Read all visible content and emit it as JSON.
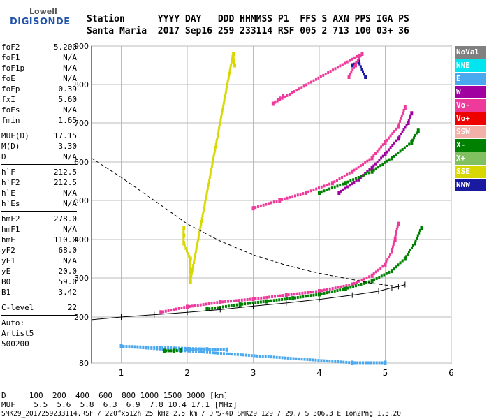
{
  "logo": {
    "top": "Lowell",
    "bottom": "DIGISONDE"
  },
  "header": {
    "line1": "Station      YYYY DAY   DDD HHMMSS P1  FFS S AXN PPS IGA PS",
    "line2": "Santa Maria  2017 Sep16 259 233114 RSF 005 2 713 100 03+ 36"
  },
  "params": {
    "group1": [
      {
        "label": "foF2",
        "value": "5.200"
      },
      {
        "label": "foF1",
        "value": "N/A"
      },
      {
        "label": "foF1p",
        "value": "N/A"
      },
      {
        "label": "foE",
        "value": "N/A"
      },
      {
        "label": "foEp",
        "value": "0.39"
      },
      {
        "label": "fxI",
        "value": "5.60"
      },
      {
        "label": "foEs",
        "value": "N/A"
      },
      {
        "label": "fmin",
        "value": "1.65"
      }
    ],
    "group2": [
      {
        "label": "MUF(D)",
        "value": "17.15"
      },
      {
        "label": "M(D)",
        "value": "3.30"
      },
      {
        "label": "D",
        "value": "N/A"
      }
    ],
    "group3": [
      {
        "label": "h`F",
        "value": "212.5"
      },
      {
        "label": "h`F2",
        "value": "212.5"
      },
      {
        "label": "h`E",
        "value": "N/A"
      },
      {
        "label": "h`Es",
        "value": "N/A"
      }
    ],
    "group4": [
      {
        "label": "hmF2",
        "value": "278.0"
      },
      {
        "label": "hmF1",
        "value": "N/A"
      },
      {
        "label": "hmE",
        "value": "110.0"
      },
      {
        "label": "yF2",
        "value": "68.0"
      },
      {
        "label": "yF1",
        "value": "N/A"
      },
      {
        "label": "yE",
        "value": "20.0"
      },
      {
        "label": "B0",
        "value": "59.0"
      },
      {
        "label": "B1",
        "value": "3.42"
      }
    ],
    "group5": [
      {
        "label": "C-level",
        "value": "22"
      }
    ],
    "auto_label": "Auto:",
    "artist": "Artist5",
    "version": "500200"
  },
  "legend": [
    {
      "label": "NoVal",
      "color": "#808080"
    },
    {
      "label": "NNE",
      "color": "#00e5ee"
    },
    {
      "label": "E",
      "color": "#4aa8ee"
    },
    {
      "label": "W",
      "color": "#a000a0"
    },
    {
      "label": "Vo-",
      "color": "#ee3a9a"
    },
    {
      "label": "Vo+",
      "color": "#ee0000"
    },
    {
      "label": "SSW",
      "color": "#f3b0a8"
    },
    {
      "label": "X-",
      "color": "#008000"
    },
    {
      "label": "X+",
      "color": "#80c060"
    },
    {
      "label": "SSE",
      "color": "#d8d800"
    },
    {
      "label": "NNW",
      "color": "#1a1aa0"
    }
  ],
  "muf_table": {
    "distance_row": "D     100  200  400  600  800 1000 1500 3000 [km]",
    "muf_row": "MUF    5.5  5.6  5.8  6.3  6.9  7.8 10.4 17.1 [MHz]"
  },
  "footer": "SMK29_2017259233114.RSF / 220fx512h 25 kHz 2.5 km / DPS-4D SMK29 129 / 29.7 S 306.3 E Ion2Png 1.3.20",
  "chart_data": {
    "type": "scatter",
    "x_ticks": [
      "1",
      "2",
      "3",
      "4",
      "5",
      "6"
    ],
    "y_ticks": [
      "80",
      "200",
      "300",
      "400",
      "500",
      "600",
      "700",
      "800",
      "900"
    ],
    "xlim": [
      0.55,
      6.0
    ],
    "y_range": [
      80,
      900
    ],
    "grid": true,
    "series": [
      {
        "name": "Vo-",
        "color": "#ee3a9a",
        "points": [
          [
            1.6,
            212
          ],
          [
            2.0,
            226
          ],
          [
            2.5,
            238
          ],
          [
            3.0,
            246
          ],
          [
            3.5,
            256
          ],
          [
            4.0,
            266
          ],
          [
            4.5,
            283
          ],
          [
            4.8,
            306
          ],
          [
            5.0,
            335
          ],
          [
            5.1,
            368
          ],
          [
            5.15,
            400
          ],
          [
            5.2,
            440
          ]
        ]
      },
      {
        "name": "X-",
        "color": "#008000",
        "points": [
          [
            2.3,
            220
          ],
          [
            2.8,
            232
          ],
          [
            3.2,
            240
          ],
          [
            3.6,
            248
          ],
          [
            4.0,
            258
          ],
          [
            4.4,
            272
          ],
          [
            4.8,
            292
          ],
          [
            5.1,
            318
          ],
          [
            5.3,
            350
          ],
          [
            5.45,
            390
          ],
          [
            5.55,
            430
          ]
        ]
      },
      {
        "name": "W",
        "color": "#a000a0",
        "points": [
          [
            4.3,
            520
          ],
          [
            4.6,
            555
          ],
          [
            4.8,
            585
          ],
          [
            5.0,
            620
          ],
          [
            5.2,
            660
          ],
          [
            5.35,
            700
          ],
          [
            5.4,
            725
          ]
        ]
      },
      {
        "name": "Vo-",
        "color": "#ee3a9a",
        "points": [
          [
            3.0,
            480
          ],
          [
            3.4,
            500
          ],
          [
            3.8,
            520
          ],
          [
            4.2,
            545
          ],
          [
            4.5,
            575
          ],
          [
            4.8,
            610
          ],
          [
            5.0,
            650
          ],
          [
            5.2,
            690
          ],
          [
            5.3,
            740
          ]
        ]
      },
      {
        "name": "X-",
        "color": "#008000",
        "points": [
          [
            4.0,
            520
          ],
          [
            4.4,
            545
          ],
          [
            4.8,
            575
          ],
          [
            5.1,
            610
          ],
          [
            5.4,
            650
          ],
          [
            5.5,
            680
          ]
        ]
      },
      {
        "name": "SSE",
        "color": "#d8d800",
        "points": [
          [
            1.95,
            430
          ],
          [
            1.95,
            410
          ],
          [
            1.95,
            390
          ],
          [
            2.05,
            350
          ],
          [
            2.05,
            320
          ],
          [
            2.05,
            290
          ],
          [
            2.7,
            880
          ],
          [
            2.72,
            850
          ]
        ]
      },
      {
        "name": "NNW",
        "color": "#1a1aa0",
        "points": [
          [
            4.5,
            850
          ],
          [
            4.6,
            860
          ],
          [
            4.7,
            820
          ]
        ]
      },
      {
        "name": "Vo-",
        "color": "#ee3a9a",
        "points": [
          [
            4.45,
            820
          ],
          [
            4.55,
            850
          ],
          [
            4.65,
            880
          ],
          [
            3.3,
            750
          ],
          [
            3.45,
            770
          ]
        ]
      },
      {
        "name": "E",
        "color": "#4aa8ee",
        "points": [
          [
            2.0,
            116
          ],
          [
            2.3,
            116
          ],
          [
            2.6,
            115
          ],
          [
            1.0,
            124
          ],
          [
            4.5,
            81
          ],
          [
            5.0,
            81
          ]
        ]
      },
      {
        "name": "X-",
        "color": "#008000",
        "points": [
          [
            1.65,
            112
          ],
          [
            1.8,
            112
          ],
          [
            1.9,
            113
          ]
        ]
      }
    ],
    "profile_curve": [
      [
        0.55,
        193
      ],
      [
        1.0,
        200
      ],
      [
        1.5,
        206
      ],
      [
        2.0,
        212
      ],
      [
        2.5,
        219
      ],
      [
        3.0,
        228
      ],
      [
        3.5,
        236
      ],
      [
        4.0,
        245
      ],
      [
        4.5,
        256
      ],
      [
        4.9,
        266
      ],
      [
        5.1,
        275
      ],
      [
        5.2,
        278
      ],
      [
        5.3,
        283
      ]
    ],
    "profile_upper": [
      [
        0.55,
        610
      ],
      [
        1.0,
        560
      ],
      [
        1.5,
        500
      ],
      [
        2.0,
        440
      ],
      [
        2.5,
        396
      ],
      [
        3.0,
        360
      ],
      [
        3.5,
        333
      ],
      [
        4.0,
        312
      ],
      [
        4.5,
        296
      ],
      [
        4.8,
        286
      ],
      [
        5.1,
        280
      ],
      [
        5.2,
        278
      ]
    ]
  }
}
